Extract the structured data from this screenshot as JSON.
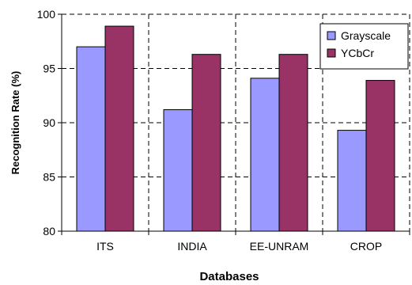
{
  "chart_data": {
    "type": "bar",
    "xlabel": "Databases",
    "ylabel": "Recognition Rate (%)",
    "categories": [
      "ITS",
      "INDIA",
      "EE-UNRAM",
      "CROP"
    ],
    "series": [
      {
        "name": "Grayscale",
        "values": [
          97.0,
          91.2,
          94.1,
          89.3
        ],
        "color": "#9999ff"
      },
      {
        "name": "YCbCr",
        "values": [
          98.9,
          96.3,
          96.3,
          93.9
        ],
        "color": "#993366"
      }
    ],
    "ylim": [
      80,
      100
    ],
    "yticks": [
      80,
      85,
      90,
      95,
      100
    ],
    "grid": true,
    "legend_position": "top-right"
  }
}
